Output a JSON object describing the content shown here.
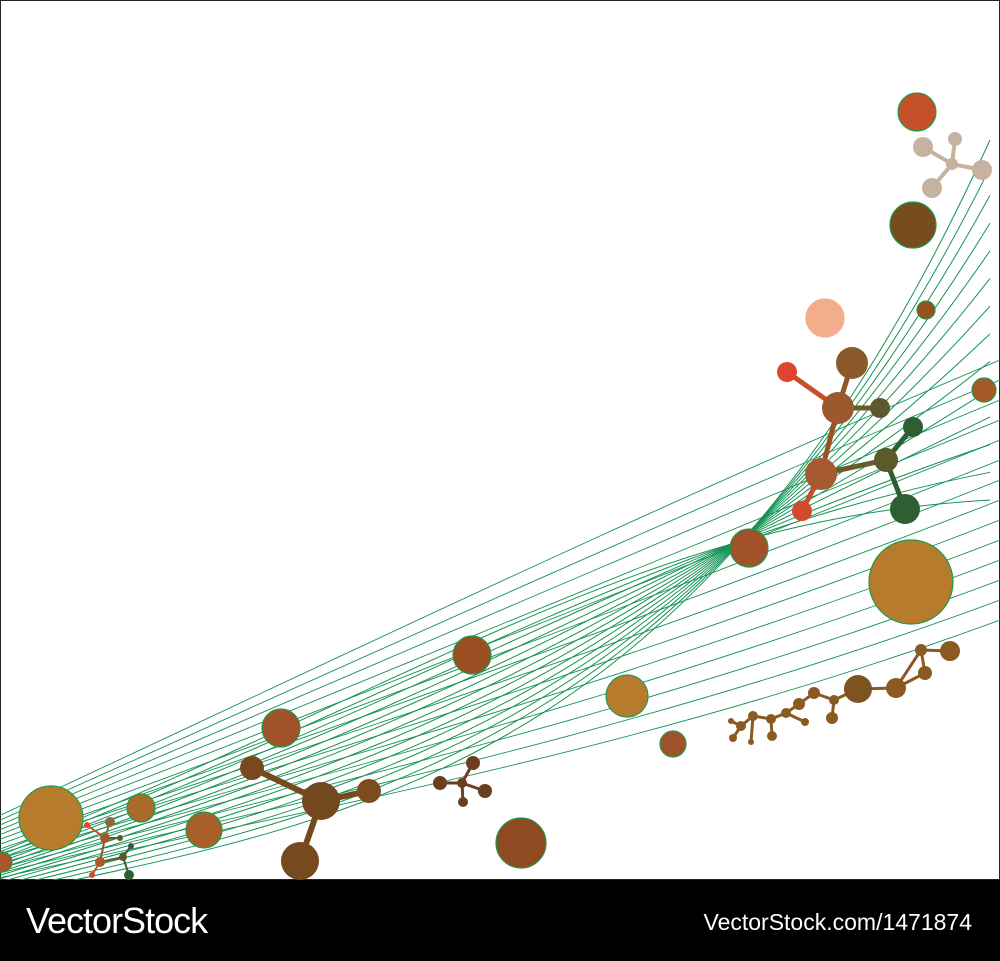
{
  "footer": {
    "brand": "VectorStock",
    "image_id": "VectorStock.com/1471874"
  },
  "palette": {
    "wave": "#159256",
    "bubble_stroke": "#1f9a4a",
    "orange_brown": "#b97a2c",
    "sienna": "#9a5124",
    "dark_brown": "#77491e",
    "rust": "#c6502a",
    "peach": "#f4ad8c",
    "red": "#e04530",
    "olive": "#5c5a2a",
    "dark_green": "#2d5f33",
    "tan": "#c6b29e"
  },
  "artwork": {
    "background": "#ffffff",
    "icons": [
      "wave-mesh",
      "molecule-icon",
      "bubble"
    ]
  }
}
